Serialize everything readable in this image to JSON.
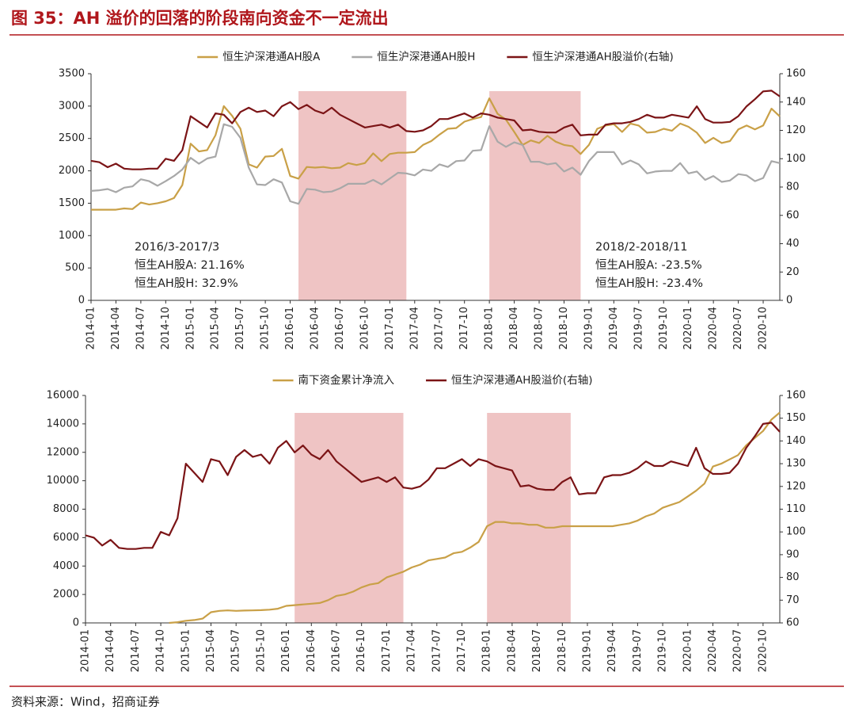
{
  "figure_title": "图 35：AH 溢价的回落的阶段南向资金不一定流出",
  "source": "资料来源：Wind，招商证券",
  "chart_data": [
    {
      "type": "line",
      "categories": [
        "2014-01",
        null,
        null,
        "2014-04",
        null,
        null,
        "2014-07",
        null,
        null,
        "2014-10",
        null,
        null,
        "2015-01",
        null,
        null,
        "2015-04",
        null,
        null,
        "2015-07",
        null,
        null,
        "2015-10",
        null,
        null,
        "2016-01",
        null,
        null,
        "2016-04",
        null,
        null,
        "2016-07",
        null,
        null,
        "2016-10",
        null,
        null,
        "2017-01",
        null,
        null,
        "2017-04",
        null,
        null,
        "2017-07",
        null,
        null,
        "2017-10",
        null,
        null,
        "2018-01",
        null,
        null,
        "2018-04",
        null,
        null,
        "2018-07",
        null,
        null,
        "2018-10",
        null,
        null,
        "2019-01",
        null,
        null,
        "2019-04",
        null,
        null,
        "2019-07",
        null,
        null,
        "2019-10",
        null,
        null,
        "2020-01",
        null,
        null,
        "2020-04",
        null,
        null,
        "2020-07",
        null,
        null,
        "2020-10",
        null,
        null
      ],
      "ylim": [
        0,
        3500
      ],
      "yticks": [
        0,
        500,
        1000,
        1500,
        2000,
        2500,
        3000,
        3500
      ],
      "y2lim": [
        0,
        160
      ],
      "y2ticks": [
        0,
        20,
        40,
        60,
        80,
        100,
        120,
        140,
        160
      ],
      "highlights": [
        [
          "2016-02",
          "2017-03"
        ],
        [
          "2018-01",
          "2018-12"
        ]
      ],
      "highlight_color": "#efc4c4",
      "series": [
        {
          "name": "恒生沪深港通AH股A",
          "color": "#c9a047",
          "values": [
            1400,
            1400,
            1400,
            1400,
            1420,
            1410,
            1510,
            1480,
            1500,
            1530,
            1580,
            1780,
            2420,
            2300,
            2320,
            2550,
            3000,
            2850,
            2650,
            2100,
            2050,
            2220,
            2230,
            2340,
            1920,
            1880,
            2060,
            2050,
            2060,
            2040,
            2050,
            2120,
            2090,
            2120,
            2270,
            2150,
            2260,
            2280,
            2280,
            2290,
            2400,
            2460,
            2560,
            2650,
            2660,
            2760,
            2800,
            2830,
            3120,
            2880,
            2790,
            2600,
            2400,
            2470,
            2430,
            2540,
            2450,
            2400,
            2380,
            2260,
            2400,
            2650,
            2700,
            2720,
            2600,
            2730,
            2700,
            2590,
            2600,
            2650,
            2620,
            2730,
            2680,
            2590,
            2430,
            2510,
            2430,
            2460,
            2640,
            2700,
            2640,
            2700,
            2960,
            2840
          ]
        },
        {
          "name": "恒生沪深港通AH股H",
          "color": "#a8a8a8",
          "values": [
            1690,
            1700,
            1720,
            1670,
            1740,
            1760,
            1870,
            1840,
            1770,
            1840,
            1920,
            2020,
            2200,
            2110,
            2190,
            2220,
            2720,
            2680,
            2510,
            2050,
            1790,
            1780,
            1870,
            1820,
            1530,
            1490,
            1720,
            1710,
            1670,
            1680,
            1730,
            1800,
            1800,
            1800,
            1860,
            1790,
            1880,
            1970,
            1960,
            1930,
            2020,
            2000,
            2100,
            2060,
            2150,
            2160,
            2310,
            2320,
            2690,
            2450,
            2370,
            2440,
            2400,
            2140,
            2140,
            2100,
            2120,
            1990,
            2050,
            1940,
            2150,
            2290,
            2290,
            2290,
            2100,
            2160,
            2100,
            1960,
            1990,
            2000,
            2000,
            2120,
            1960,
            1990,
            1860,
            1920,
            1830,
            1850,
            1950,
            1930,
            1840,
            1890,
            2150,
            2120
          ]
        },
        {
          "name": "恒生沪深港通AH股溢价(右轴)",
          "color": "#7b1416",
          "axis": "y2",
          "values": [
            98.5,
            97.5,
            94,
            96.5,
            93,
            92.5,
            92.5,
            93,
            93,
            100,
            98.5,
            106,
            130,
            126,
            122,
            132,
            131,
            125,
            133,
            136,
            133,
            134,
            130,
            137,
            140,
            135,
            138,
            134,
            132,
            136,
            131,
            128,
            125,
            122,
            123,
            124,
            122,
            124,
            119.5,
            119,
            120,
            123,
            128,
            128,
            130,
            132,
            129,
            132,
            131,
            129,
            128,
            127,
            120,
            120.5,
            119,
            118.5,
            118.5,
            122,
            124,
            116.5,
            117,
            117,
            124,
            125,
            125,
            126,
            128,
            131,
            129,
            129,
            131,
            130,
            129,
            137,
            128,
            125.5,
            125.5,
            126,
            130,
            137,
            142,
            147.5,
            148,
            144
          ]
        }
      ],
      "annotations": [
        [
          "2016/3-2017/3",
          "恒生AH股A:  21.16%",
          "恒生AH股H:  32.9%"
        ],
        [
          "2018/2-2018/11",
          "恒生AH股A:  -23.5%",
          "恒生AH股H:  -23.4%"
        ]
      ]
    },
    {
      "type": "line",
      "categories": [
        "2014-01",
        null,
        null,
        "2014-04",
        null,
        null,
        "2014-07",
        null,
        null,
        "2014-10",
        null,
        null,
        "2015-01",
        null,
        null,
        "2015-04",
        null,
        null,
        "2015-07",
        null,
        null,
        "2015-10",
        null,
        null,
        "2016-01",
        null,
        null,
        "2016-04",
        null,
        null,
        "2016-07",
        null,
        null,
        "2016-10",
        null,
        null,
        "2017-01",
        null,
        null,
        "2017-04",
        null,
        null,
        "2017-07",
        null,
        null,
        "2017-10",
        null,
        null,
        "2018-01",
        null,
        null,
        "2018-04",
        null,
        null,
        "2018-07",
        null,
        null,
        "2018-10",
        null,
        null,
        "2019-01",
        null,
        null,
        "2019-04",
        null,
        null,
        "2019-07",
        null,
        null,
        "2019-10",
        null,
        null,
        "2020-01",
        null,
        null,
        "2020-04",
        null,
        null,
        "2020-07",
        null,
        null,
        "2020-10",
        null,
        null
      ],
      "ylim": [
        0,
        16000
      ],
      "yticks": [
        0,
        2000,
        4000,
        6000,
        8000,
        10000,
        12000,
        14000,
        16000
      ],
      "y2lim": [
        60,
        160
      ],
      "y2ticks": [
        60,
        70,
        80,
        90,
        100,
        110,
        120,
        130,
        140,
        150,
        160
      ],
      "highlights": [
        [
          "2016-02",
          "2017-03"
        ],
        [
          "2018-01",
          "2018-11"
        ]
      ],
      "highlight_color": "#efc4c4",
      "series": [
        {
          "name": "南下资金累计净流入",
          "color": "#c9a047",
          "values": [
            null,
            null,
            null,
            null,
            null,
            null,
            null,
            null,
            null,
            null,
            0,
            50,
            150,
            200,
            300,
            750,
            850,
            880,
            850,
            870,
            880,
            900,
            930,
            1000,
            1200,
            1250,
            1300,
            1350,
            1400,
            1600,
            1900,
            2000,
            2200,
            2500,
            2700,
            2800,
            3200,
            3400,
            3600,
            3900,
            4100,
            4400,
            4500,
            4600,
            4900,
            5000,
            5300,
            5700,
            6800,
            7100,
            7100,
            7000,
            7000,
            6900,
            6900,
            6700,
            6700,
            6800,
            6800,
            6800,
            6800,
            6800,
            6800,
            6800,
            6900,
            7000,
            7200,
            7500,
            7700,
            8100,
            8300,
            8500,
            8900,
            9300,
            9800,
            11000,
            11200,
            11500,
            11800,
            12500,
            13000,
            13500,
            14300,
            14800
          ]
        },
        {
          "name": "恒生沪深港通AH股溢价(右轴)",
          "color": "#7b1416",
          "axis": "y2",
          "values": [
            98.5,
            97.5,
            94,
            96.5,
            93,
            92.5,
            92.5,
            93,
            93,
            100,
            98.5,
            106,
            130,
            126,
            122,
            132,
            131,
            125,
            133,
            136,
            133,
            134,
            130,
            137,
            140,
            135,
            138,
            134,
            132,
            136,
            131,
            128,
            125,
            122,
            123,
            124,
            122,
            124,
            119.5,
            119,
            120,
            123,
            128,
            128,
            130,
            132,
            129,
            132,
            131,
            129,
            128,
            127,
            120,
            120.5,
            119,
            118.5,
            118.5,
            122,
            124,
            116.5,
            117,
            117,
            124,
            125,
            125,
            126,
            128,
            131,
            129,
            129,
            131,
            130,
            129,
            137,
            128,
            125.5,
            125.5,
            126,
            130,
            137,
            142,
            147.5,
            148,
            144
          ]
        }
      ]
    }
  ]
}
